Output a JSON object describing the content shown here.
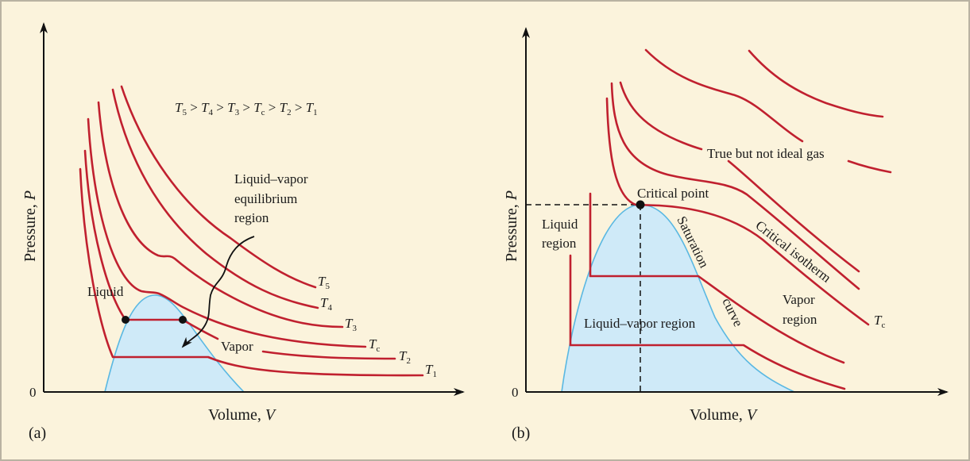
{
  "colors": {
    "background": "#fbf3dc",
    "isotherm": "#c0202f",
    "dome_fill": "#cfeaf8",
    "dome_stroke": "#5ab8e2",
    "axis": "#111111"
  },
  "panel_a": {
    "label": "(a)",
    "y_axis_label": "Pressure, ",
    "y_axis_symbol": "P",
    "x_axis_label": "Volume, ",
    "x_axis_symbol": "V",
    "origin": "0",
    "ordering": "T5 > T4 > T3 > Tc > T2 > T1",
    "ordering_parts": [
      {
        "t": "T",
        "sub": "5"
      },
      {
        "t": "T",
        "sub": "4"
      },
      {
        "t": "T",
        "sub": "3"
      },
      {
        "t": "T",
        "sub": "c"
      },
      {
        "t": "T",
        "sub": "2"
      },
      {
        "t": "T",
        "sub": "1"
      }
    ],
    "annotation_lines": [
      "Liquid–vapor",
      "equilibrium",
      "region"
    ],
    "liquid_label": "Liquid",
    "vapor_label": "Vapor",
    "isotherm_labels": [
      {
        "t": "T",
        "sub": "5"
      },
      {
        "t": "T",
        "sub": "4"
      },
      {
        "t": "T",
        "sub": "3"
      },
      {
        "t": "T",
        "sub": "c"
      },
      {
        "t": "T",
        "sub": "2"
      },
      {
        "t": "T",
        "sub": "1"
      }
    ]
  },
  "panel_b": {
    "label": "(b)",
    "y_axis_label": "Pressure, ",
    "y_axis_symbol": "P",
    "x_axis_label": "Volume, ",
    "x_axis_symbol": "V",
    "origin": "0",
    "gas_label": "True but not ideal gas",
    "critical_point_label": "Critical point",
    "liquid_region_lines": [
      "Liquid",
      "region"
    ],
    "saturation_label": "Saturation",
    "curve_label": "curve",
    "critical_isotherm_label": "Critical isotherm",
    "vapor_region_lines": [
      "Vapor",
      "region"
    ],
    "liquid_vapor_region_label": "Liquid–vapor region",
    "tc_label": {
      "t": "T",
      "sub": "c"
    }
  }
}
